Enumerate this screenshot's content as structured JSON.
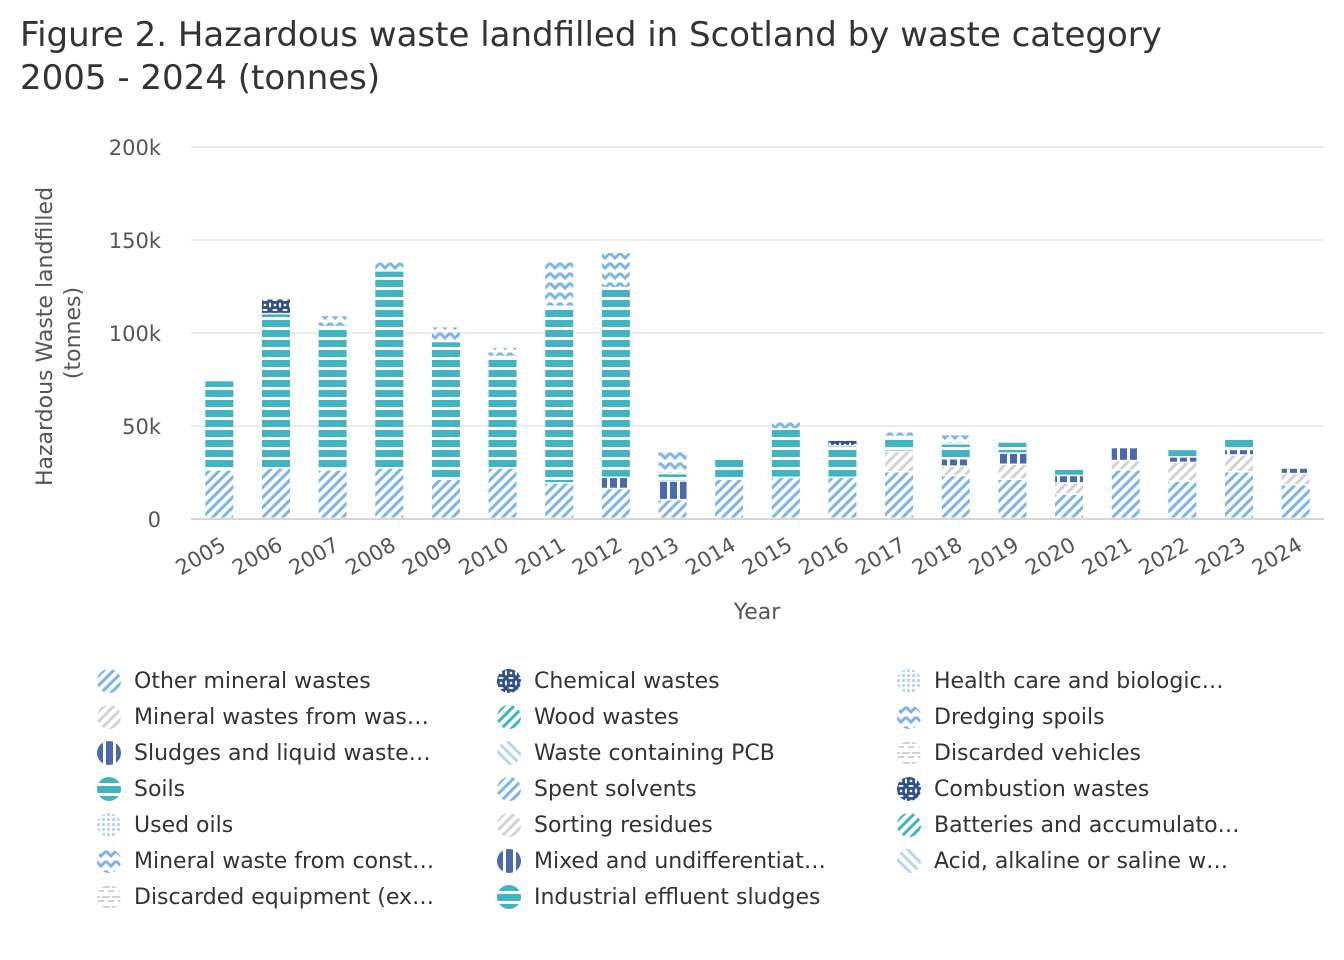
{
  "chart_data": {
    "type": "bar",
    "stacked": true,
    "title_line1": "Figure 2. Hazardous waste landfilled in Scotland by waste category",
    "title_line2": "2005 - 2024 (tonnes)",
    "xlabel": "Year",
    "ylabel_line1": "Hazardous Waste landfilled",
    "ylabel_line2": "(tonnes)",
    "ylim": [
      0,
      200000
    ],
    "yticks": [
      {
        "value": 0,
        "label": "0"
      },
      {
        "value": 50000,
        "label": "50k"
      },
      {
        "value": 100000,
        "label": "100k"
      },
      {
        "value": 150000,
        "label": "150k"
      },
      {
        "value": 200000,
        "label": "200k"
      }
    ],
    "categories": [
      "2005",
      "2006",
      "2007",
      "2008",
      "2009",
      "2010",
      "2011",
      "2012",
      "2013",
      "2014",
      "2015",
      "2016",
      "2017",
      "2018",
      "2019",
      "2020",
      "2021",
      "2022",
      "2023",
      "2024"
    ],
    "series": [
      {
        "name": "Other mineral wastes",
        "legend": "Other mineral wastes",
        "color": "#7cb5ec",
        "pattern": "diag-right",
        "values": [
          26000,
          27000,
          26000,
          27000,
          21000,
          27000,
          19000,
          16000,
          10000,
          21000,
          22000,
          22000,
          25000,
          23000,
          21000,
          13000,
          26000,
          20000,
          25000,
          18000
        ]
      },
      {
        "name": "Mineral wastes from waste treatment",
        "legend": "Mineral wastes from was…",
        "color": "#d2d2d2",
        "pattern": "diag-right",
        "values": [
          0,
          0,
          0,
          0,
          0,
          0,
          0,
          0,
          0,
          0,
          0,
          0,
          11000,
          5000,
          8000,
          6000,
          5000,
          10000,
          9000,
          6000
        ]
      },
      {
        "name": "Sludges and liquid wastes from waste treatment",
        "legend": "Sludges and liquid waste…",
        "color": "#4a6aab",
        "pattern": "vertical",
        "values": [
          0,
          0,
          0,
          0,
          0,
          0,
          0,
          6000,
          10000,
          0,
          0,
          0,
          0,
          4000,
          6000,
          4000,
          7000,
          3000,
          3000,
          3000
        ]
      },
      {
        "name": "Soils",
        "legend": "Soils",
        "color": "#41b4c2",
        "pattern": "horizontal",
        "values": [
          48000,
          83000,
          77000,
          106000,
          74000,
          60000,
          95000,
          102000,
          4000,
          11000,
          26000,
          17000,
          8000,
          8000,
          6000,
          4000,
          0,
          4000,
          6000,
          0
        ]
      },
      {
        "name": "Used oils",
        "legend": "Used oils",
        "color": "#b8d6f2",
        "pattern": "grid",
        "values": [
          0,
          0,
          0,
          0,
          0,
          0,
          0,
          0,
          0,
          0,
          0,
          0,
          0,
          0,
          0,
          0,
          0,
          0,
          0,
          0
        ]
      },
      {
        "name": "Mineral waste from construction and demolition",
        "legend": "Mineral waste from const…",
        "color": "#7cb5ec",
        "pattern": "zigzag",
        "values": [
          0,
          0,
          6000,
          5000,
          8000,
          5000,
          24000,
          19000,
          12000,
          0,
          4000,
          0,
          3000,
          5000,
          0,
          0,
          0,
          0,
          0,
          0
        ]
      },
      {
        "name": "Discarded equipment (excluding discarded vehicles, batteries and accumulators)",
        "legend": "Discarded equipment (ex…",
        "color": "#d2d2d2",
        "pattern": "cross-dash",
        "values": [
          0,
          0,
          0,
          0,
          0,
          0,
          0,
          0,
          0,
          0,
          0,
          0,
          0,
          0,
          0,
          0,
          0,
          0,
          0,
          0
        ]
      },
      {
        "name": "Chemical wastes",
        "legend": "Chemical wastes",
        "color": "#2f4f8f",
        "pattern": "star",
        "values": [
          0,
          8000,
          0,
          0,
          0,
          0,
          0,
          0,
          0,
          0,
          0,
          3000,
          0,
          0,
          0,
          0,
          0,
          0,
          0,
          0
        ]
      },
      {
        "name": "Wood wastes",
        "legend": "Wood wastes",
        "color": "#41b4c2",
        "pattern": "diag-right",
        "values": [
          0,
          0,
          0,
          0,
          0,
          0,
          0,
          0,
          0,
          0,
          0,
          0,
          0,
          0,
          0,
          0,
          0,
          0,
          0,
          0
        ]
      },
      {
        "name": "Waste containing PCB",
        "legend": "Waste containing PCB",
        "color": "#b8d6f2",
        "pattern": "diag-left",
        "values": [
          0,
          0,
          0,
          0,
          0,
          0,
          0,
          0,
          0,
          0,
          0,
          0,
          0,
          0,
          0,
          0,
          0,
          0,
          0,
          0
        ]
      },
      {
        "name": "Spent solvents",
        "legend": "Spent solvents",
        "color": "#7cb5ec",
        "pattern": "diag-right",
        "values": [
          0,
          0,
          0,
          0,
          0,
          0,
          0,
          0,
          0,
          0,
          0,
          0,
          0,
          0,
          0,
          0,
          0,
          0,
          0,
          0
        ]
      },
      {
        "name": "Sorting residues",
        "legend": "Sorting residues",
        "color": "#d2d2d2",
        "pattern": "diag-right",
        "values": [
          0,
          0,
          0,
          0,
          0,
          0,
          0,
          0,
          0,
          0,
          0,
          0,
          0,
          0,
          0,
          0,
          0,
          0,
          0,
          0
        ]
      },
      {
        "name": "Mixed and undifferentiated materials",
        "legend": "Mixed and undifferentiat…",
        "color": "#4a6aab",
        "pattern": "vertical",
        "values": [
          0,
          0,
          0,
          0,
          0,
          0,
          0,
          0,
          0,
          0,
          0,
          0,
          0,
          0,
          0,
          0,
          0,
          0,
          0,
          0
        ]
      },
      {
        "name": "Industrial effluent sludges",
        "legend": "Industrial effluent sludges",
        "color": "#41b4c2",
        "pattern": "horizontal",
        "values": [
          0,
          0,
          0,
          0,
          0,
          0,
          0,
          0,
          0,
          0,
          0,
          0,
          0,
          0,
          0,
          0,
          0,
          0,
          0,
          0
        ]
      },
      {
        "name": "Health care and biological wastes",
        "legend": "Health care and biologic…",
        "color": "#b8d6f2",
        "pattern": "grid",
        "values": [
          0,
          0,
          0,
          0,
          0,
          0,
          0,
          0,
          0,
          0,
          0,
          0,
          0,
          0,
          0,
          0,
          0,
          0,
          0,
          0
        ]
      },
      {
        "name": "Dredging spoils",
        "legend": "Dredging spoils",
        "color": "#7cb5ec",
        "pattern": "zigzag",
        "values": [
          0,
          0,
          0,
          0,
          0,
          0,
          0,
          0,
          0,
          0,
          0,
          0,
          0,
          0,
          0,
          0,
          0,
          0,
          0,
          0
        ]
      },
      {
        "name": "Discarded vehicles",
        "legend": "Discarded vehicles",
        "color": "#d2d2d2",
        "pattern": "cross-dash",
        "values": [
          0,
          0,
          0,
          0,
          0,
          0,
          0,
          0,
          0,
          0,
          0,
          0,
          0,
          0,
          0,
          0,
          0,
          0,
          0,
          0
        ]
      },
      {
        "name": "Combustion wastes",
        "legend": "Combustion wastes",
        "color": "#2f4f8f",
        "pattern": "star",
        "values": [
          0,
          0,
          0,
          0,
          0,
          0,
          0,
          0,
          0,
          0,
          0,
          0,
          0,
          0,
          0,
          0,
          0,
          0,
          0,
          0
        ]
      },
      {
        "name": "Batteries and accumulators wastes",
        "legend": "Batteries and accumulato…",
        "color": "#41b4c2",
        "pattern": "diag-right",
        "values": [
          0,
          0,
          0,
          0,
          0,
          0,
          0,
          0,
          0,
          0,
          0,
          0,
          0,
          0,
          0,
          0,
          0,
          0,
          0,
          0
        ]
      },
      {
        "name": "Acid, alkaline or saline wastes",
        "legend": "Acid, alkaline or saline w…",
        "color": "#b8d6f2",
        "pattern": "diag-left",
        "values": [
          0,
          0,
          0,
          0,
          0,
          0,
          0,
          0,
          0,
          0,
          0,
          0,
          0,
          0,
          0,
          0,
          0,
          0,
          0,
          0
        ]
      }
    ],
    "legend_layout": "three columns, column-major, below chart"
  }
}
